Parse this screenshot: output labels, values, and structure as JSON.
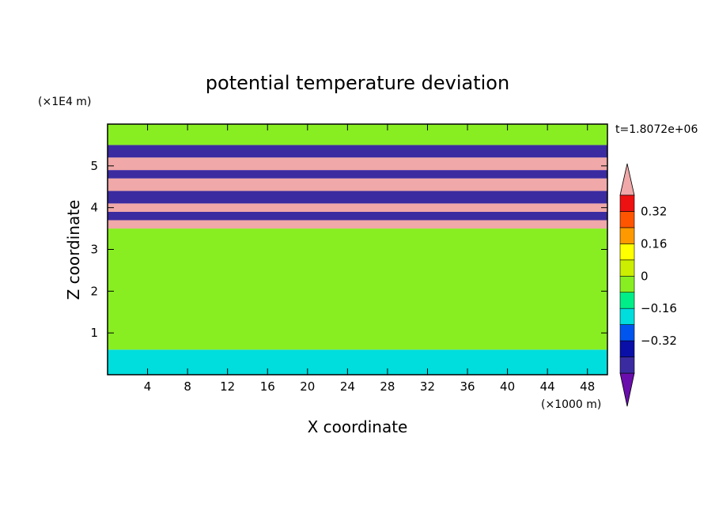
{
  "chart_data": {
    "type": "heatmap",
    "title": "potential temperature deviation",
    "xlabel": "X coordinate",
    "ylabel": "Z coordinate",
    "x_scale_label": "(×1000 m)",
    "y_scale_label": "(×1E4 m)",
    "time_label": "t=1.8072e+06",
    "xlim": [
      0,
      50
    ],
    "ylim": [
      0,
      6
    ],
    "x_ticks": [
      4,
      8,
      12,
      16,
      20,
      24,
      28,
      32,
      36,
      40,
      44,
      48
    ],
    "y_ticks": [
      1,
      2,
      3,
      4,
      5
    ],
    "colorbar": {
      "levels": [
        {
          "label": "",
          "color": "#6a0dad"
        },
        {
          "label": "",
          "color": "#3b2ba0"
        },
        {
          "label": "−0.32",
          "color": "#0a0fa8"
        },
        {
          "label": "",
          "color": "#0055ee"
        },
        {
          "label": "−0.16",
          "color": "#00dddd"
        },
        {
          "label": "",
          "color": "#00ee88"
        },
        {
          "label": "0",
          "color": "#88ee22"
        },
        {
          "label": "",
          "color": "#ccee00"
        },
        {
          "label": "0.16",
          "color": "#ffff00"
        },
        {
          "label": "",
          "color": "#ff9900"
        },
        {
          "label": "0.32",
          "color": "#ff5500"
        },
        {
          "label": "",
          "color": "#ee1111"
        },
        {
          "label": "",
          "color": "#f0a8a8"
        }
      ]
    },
    "bands": [
      {
        "z0": 0.0,
        "z1": 0.6,
        "color": "#00dddd"
      },
      {
        "z0": 0.6,
        "z1": 3.5,
        "color": "#88ee22"
      },
      {
        "z0": 3.5,
        "z1": 3.7,
        "color": "#f0a8a8"
      },
      {
        "z0": 3.7,
        "z1": 3.9,
        "color": "#3b2ba0"
      },
      {
        "z0": 3.9,
        "z1": 4.1,
        "color": "#f0a8a8"
      },
      {
        "z0": 4.1,
        "z1": 4.4,
        "color": "#3b2ba0"
      },
      {
        "z0": 4.4,
        "z1": 4.7,
        "color": "#f0a8a8"
      },
      {
        "z0": 4.7,
        "z1": 4.9,
        "color": "#3b2ba0"
      },
      {
        "z0": 4.9,
        "z1": 5.2,
        "color": "#f0a8a8"
      },
      {
        "z0": 5.2,
        "z1": 5.5,
        "color": "#3b2ba0"
      },
      {
        "z0": 5.5,
        "z1": 6.0,
        "color": "#88ee22"
      }
    ]
  }
}
